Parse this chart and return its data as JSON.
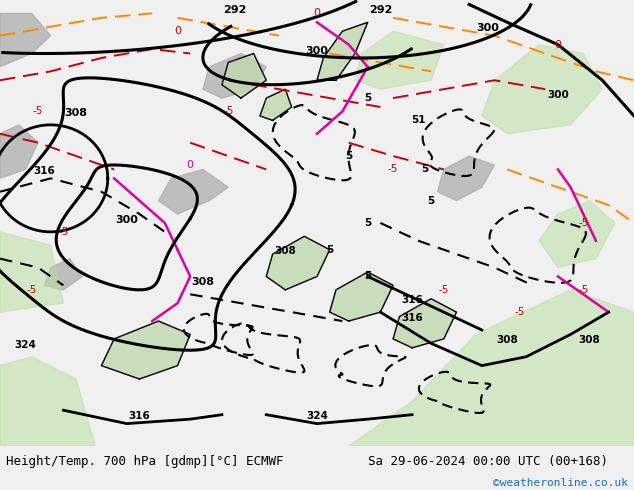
{
  "title_left": "Height/Temp. 700 hPa [gdmp][°C] ECMWF",
  "title_right": "Sa 29-06-2024 00:00 UTC (00+168)",
  "credit": "©weatheronline.co.uk",
  "bg_color": "#c8e6c8",
  "land_color": "#c8dca8",
  "sea_color": "#d0e8f0",
  "gray_color": "#b0b0b0",
  "fig_bg": "#f0f0f0",
  "bottom_bar_color": "#e8e8e8",
  "title_font_size": 9.0,
  "credit_font_size": 8,
  "credit_color": "#1a6acd"
}
